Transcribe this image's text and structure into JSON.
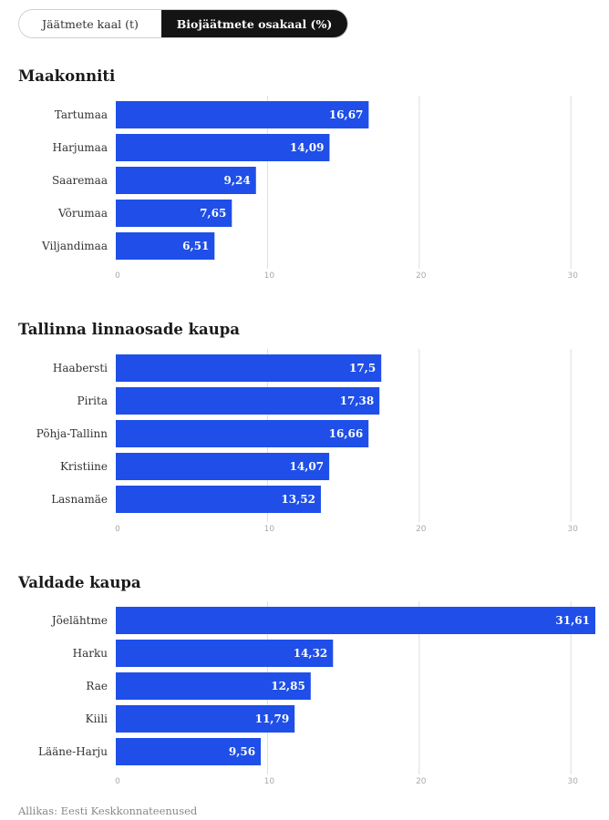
{
  "tabs": [
    {
      "label": "Jäätmete kaal (t)",
      "active": false
    },
    {
      "label": "Biojäätmete osakaal (%)",
      "active": true
    }
  ],
  "colors": {
    "bar": "#1f4fe8",
    "grid": "#dddddd",
    "tab_active_bg": "#141414"
  },
  "chart_data": [
    {
      "type": "bar",
      "orientation": "horizontal",
      "title": "Maakonniti",
      "categories": [
        "Tartumaa",
        "Harjumaa",
        "Saaremaa",
        "Võrumaa",
        "Viljandimaa"
      ],
      "values": [
        16.67,
        14.09,
        9.24,
        7.65,
        6.51
      ],
      "value_labels": [
        "16,67",
        "14,09",
        "9,24",
        "7,65",
        "6,51"
      ],
      "xlim": [
        0,
        31.61
      ],
      "ticks": [
        0,
        10,
        20,
        30
      ],
      "grid": true
    },
    {
      "type": "bar",
      "orientation": "horizontal",
      "title": "Tallinna linnaosade kaupa",
      "categories": [
        "Haabersti",
        "Pirita",
        "Põhja-Tallinn",
        "Kristiine",
        "Lasnamäe"
      ],
      "values": [
        17.5,
        17.38,
        16.66,
        14.07,
        13.52
      ],
      "value_labels": [
        "17,5",
        "17,38",
        "16,66",
        "14,07",
        "13,52"
      ],
      "xlim": [
        0,
        31.61
      ],
      "ticks": [
        0,
        10,
        20,
        30
      ],
      "grid": true
    },
    {
      "type": "bar",
      "orientation": "horizontal",
      "title": "Valdade kaupa",
      "categories": [
        "Jõelähtme",
        "Harku",
        "Rae",
        "Kiili",
        "Lääne-Harju"
      ],
      "values": [
        31.61,
        14.32,
        12.85,
        11.79,
        9.56
      ],
      "value_labels": [
        "31,61",
        "14,32",
        "12,85",
        "11,79",
        "9,56"
      ],
      "xlim": [
        0,
        31.61
      ],
      "ticks": [
        0,
        10,
        20,
        30
      ],
      "grid": true
    }
  ],
  "source": "Allikas: Eesti Keskkonnateenused"
}
